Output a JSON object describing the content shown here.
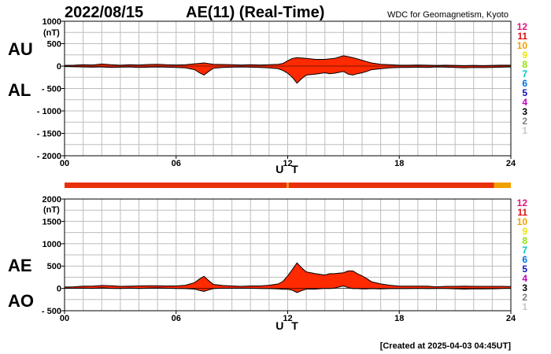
{
  "header": {
    "date": "2022/08/15",
    "title": "AE(11) (Real-Time)",
    "institution": "WDC for Geomagnetism, Kyoto"
  },
  "footer": {
    "created": "[Created at 2025-04-03 04:45UT]"
  },
  "station_count_legend": [
    {
      "label": "12",
      "color": "#e0157a"
    },
    {
      "label": "11",
      "color": "#e01010"
    },
    {
      "label": "10",
      "color": "#f0a000"
    },
    {
      "label": "9",
      "color": "#e6e600"
    },
    {
      "label": "8",
      "color": "#90e000"
    },
    {
      "label": "7",
      "color": "#00c8c8"
    },
    {
      "label": "6",
      "color": "#0070e0"
    },
    {
      "label": "5",
      "color": "#1010c0"
    },
    {
      "label": "4",
      "color": "#c000c0"
    },
    {
      "label": "3",
      "color": "#000000"
    },
    {
      "label": "2",
      "color": "#808080"
    },
    {
      "label": "1",
      "color": "#c8c8c8"
    }
  ],
  "chart_data": [
    {
      "type": "area",
      "title": "AU / AL",
      "ylabel_top": "AU",
      "ylabel_bottom": "AL",
      "unit": "(nT)",
      "xlabel": "U T",
      "xlim": [
        0,
        24
      ],
      "ylim": [
        -2000,
        1000
      ],
      "xticks": [
        0,
        6,
        12,
        18,
        24
      ],
      "xtick_labels": [
        "00",
        "06",
        "12",
        "18",
        "24"
      ],
      "yticks": [
        1000,
        500,
        0,
        -500,
        -1000,
        -1500,
        -2000
      ],
      "ytick_labels": [
        "1000",
        "500",
        "0",
        "- 500",
        "- 1000",
        "- 1500",
        "- 2000"
      ],
      "fill_color": "#ff2a00",
      "series": [
        {
          "name": "AU",
          "x": [
            0,
            0.5,
            1,
            1.5,
            2,
            2.5,
            3,
            3.5,
            4,
            4.5,
            5,
            5.5,
            6,
            6.5,
            7,
            7.25,
            7.5,
            7.75,
            8,
            8.5,
            9,
            9.5,
            10,
            10.5,
            11,
            11.5,
            11.75,
            12,
            12.25,
            12.5,
            12.75,
            13,
            13.5,
            14,
            14.25,
            14.5,
            14.75,
            15,
            15.25,
            15.5,
            15.75,
            16,
            16.25,
            16.5,
            17,
            17.5,
            18,
            18.5,
            19,
            19.5,
            20,
            20.5,
            21,
            21.5,
            22,
            22.5,
            23,
            23.5,
            24
          ],
          "values": [
            15,
            20,
            30,
            25,
            45,
            30,
            20,
            30,
            25,
            35,
            40,
            30,
            25,
            30,
            50,
            60,
            70,
            55,
            40,
            35,
            30,
            25,
            30,
            25,
            30,
            40,
            60,
            120,
            170,
            190,
            180,
            170,
            150,
            150,
            160,
            170,
            200,
            230,
            210,
            190,
            160,
            130,
            100,
            70,
            40,
            30,
            20,
            20,
            25,
            20,
            15,
            20,
            15,
            10,
            15,
            10,
            15,
            20,
            20
          ]
        },
        {
          "name": "AL",
          "x": [
            0,
            0.5,
            1,
            1.5,
            2,
            2.5,
            3,
            3.5,
            4,
            4.5,
            5,
            5.5,
            6,
            6.5,
            7,
            7.25,
            7.5,
            7.75,
            8,
            8.5,
            9,
            9.5,
            10,
            10.5,
            11,
            11.5,
            11.75,
            12,
            12.25,
            12.5,
            12.75,
            13,
            13.5,
            14,
            14.25,
            14.5,
            14.75,
            15,
            15.25,
            15.5,
            15.75,
            16,
            16.25,
            16.5,
            17,
            17.5,
            18,
            18.5,
            19,
            19.5,
            20,
            20.5,
            21,
            21.5,
            22,
            22.5,
            23,
            23.5,
            24
          ],
          "values": [
            -10,
            -15,
            -20,
            -25,
            -20,
            -30,
            -25,
            -20,
            -30,
            -25,
            -20,
            -25,
            -30,
            -40,
            -80,
            -150,
            -200,
            -120,
            -50,
            -30,
            -25,
            -20,
            -25,
            -30,
            -40,
            -60,
            -100,
            -160,
            -250,
            -380,
            -280,
            -200,
            -180,
            -150,
            -170,
            -160,
            -140,
            -120,
            -180,
            -200,
            -170,
            -150,
            -120,
            -80,
            -60,
            -40,
            -30,
            -30,
            -25,
            -30,
            -20,
            -25,
            -30,
            -40,
            -30,
            -35,
            -30,
            -25,
            -20
          ]
        }
      ]
    },
    {
      "type": "area",
      "title": "AE / AO",
      "ylabel_top": "AE",
      "ylabel_bottom": "AO",
      "unit": "(nT)",
      "xlabel": "U T",
      "xlim": [
        0,
        24
      ],
      "ylim": [
        -500,
        2000
      ],
      "xticks": [
        0,
        6,
        12,
        18,
        24
      ],
      "xtick_labels": [
        "00",
        "06",
        "12",
        "18",
        "24"
      ],
      "yticks": [
        2000,
        1500,
        1000,
        500,
        0,
        -500
      ],
      "ytick_labels": [
        "2000",
        "1500",
        "1000",
        "500",
        "0",
        "- 500"
      ],
      "fill_color": "#ff2a00",
      "series": [
        {
          "name": "AE",
          "x": [
            0,
            0.5,
            1,
            1.5,
            2,
            2.5,
            3,
            3.5,
            4,
            4.5,
            5,
            5.5,
            6,
            6.5,
            7,
            7.25,
            7.5,
            7.75,
            8,
            8.5,
            9,
            9.5,
            10,
            10.5,
            11,
            11.5,
            11.75,
            12,
            12.25,
            12.5,
            12.75,
            13,
            13.5,
            14,
            14.25,
            14.5,
            14.75,
            15,
            15.25,
            15.5,
            15.75,
            16,
            16.25,
            16.5,
            17,
            17.5,
            18,
            18.5,
            19,
            19.5,
            20,
            20.5,
            21,
            21.5,
            22,
            22.5,
            23,
            23.5,
            24
          ],
          "values": [
            30,
            35,
            50,
            50,
            65,
            60,
            45,
            50,
            55,
            60,
            60,
            55,
            55,
            70,
            130,
            210,
            270,
            175,
            90,
            65,
            55,
            45,
            55,
            55,
            70,
            100,
            160,
            280,
            420,
            570,
            460,
            370,
            330,
            300,
            330,
            330,
            340,
            350,
            390,
            390,
            330,
            280,
            220,
            150,
            100,
            70,
            50,
            50,
            50,
            50,
            35,
            45,
            45,
            50,
            45,
            45,
            45,
            45,
            40
          ]
        },
        {
          "name": "AO",
          "x": [
            0,
            0.5,
            1,
            1.5,
            2,
            2.5,
            3,
            3.5,
            4,
            4.5,
            5,
            5.5,
            6,
            6.5,
            7,
            7.25,
            7.5,
            7.75,
            8,
            8.5,
            9,
            9.5,
            10,
            10.5,
            11,
            11.5,
            11.75,
            12,
            12.25,
            12.5,
            12.75,
            13,
            13.5,
            14,
            14.25,
            14.5,
            14.75,
            15,
            15.25,
            15.5,
            15.75,
            16,
            16.25,
            16.5,
            17,
            17.5,
            18,
            18.5,
            19,
            19.5,
            20,
            20.5,
            21,
            21.5,
            22,
            22.5,
            23,
            23.5,
            24
          ],
          "values": [
            3,
            3,
            5,
            0,
            13,
            0,
            -3,
            5,
            -3,
            5,
            10,
            3,
            -3,
            -5,
            -15,
            -45,
            -65,
            -33,
            -5,
            3,
            3,
            3,
            3,
            -3,
            -5,
            -10,
            -20,
            -20,
            -40,
            -95,
            -50,
            -15,
            -15,
            0,
            -5,
            5,
            30,
            55,
            15,
            -5,
            -5,
            -10,
            -10,
            -5,
            -10,
            -5,
            -5,
            -5,
            0,
            -5,
            -3,
            -3,
            -8,
            -15,
            -8,
            -13,
            -8,
            -3,
            0
          ]
        }
      ]
    }
  ],
  "status_bar": {
    "segments": [
      {
        "from": 0,
        "to": 11.95,
        "stations": 11,
        "color": "#e8300a"
      },
      {
        "from": 11.95,
        "to": 12.05,
        "stations": 10,
        "color": "#f0a000"
      },
      {
        "from": 12.05,
        "to": 23.1,
        "stations": 11,
        "color": "#e8300a"
      },
      {
        "from": 23.1,
        "to": 24,
        "stations": 10,
        "color": "#f0a000"
      }
    ]
  }
}
